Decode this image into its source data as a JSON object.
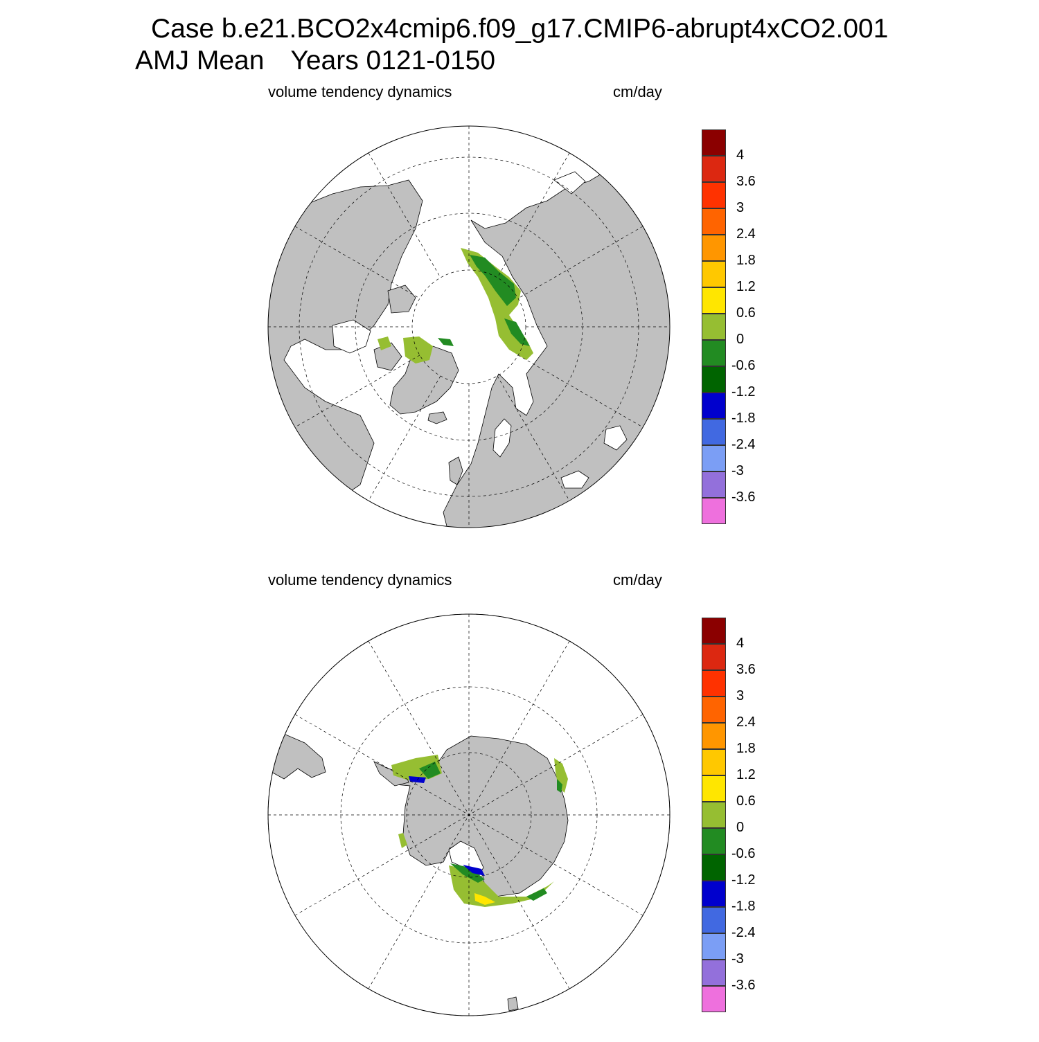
{
  "title": {
    "case_line": "Case b.e21.BCO2x4cmip6.f09_g17.CMIP6-abrupt4xCO2.001",
    "season": "AMJ Mean",
    "years": "Years 0121-0150"
  },
  "panels": [
    {
      "hemisphere": "north",
      "variable_label": "volume tendency dynamics",
      "units": "cm/day"
    },
    {
      "hemisphere": "south",
      "variable_label": "volume tendency dynamics",
      "units": "cm/day"
    }
  ],
  "colorbar": {
    "colors": [
      "#8b0000",
      "#dc2811",
      "#ff3200",
      "#ff6400",
      "#ff9600",
      "#ffc800",
      "#ffe600",
      "#96be32",
      "#228b22",
      "#006400",
      "#0000cd",
      "#4169e1",
      "#7b9ef5",
      "#9370db",
      "#ee70dd"
    ],
    "labels": [
      "4",
      "3.6",
      "3",
      "2.4",
      "1.8",
      "1.2",
      "0.6",
      "0",
      "-0.6",
      "-1.2",
      "-1.8",
      "-2.4",
      "-3",
      "-3.6"
    ]
  },
  "map_style": {
    "land_color": "#c0c0c0",
    "ocean_color": "#ffffff",
    "grid": "dashed"
  }
}
